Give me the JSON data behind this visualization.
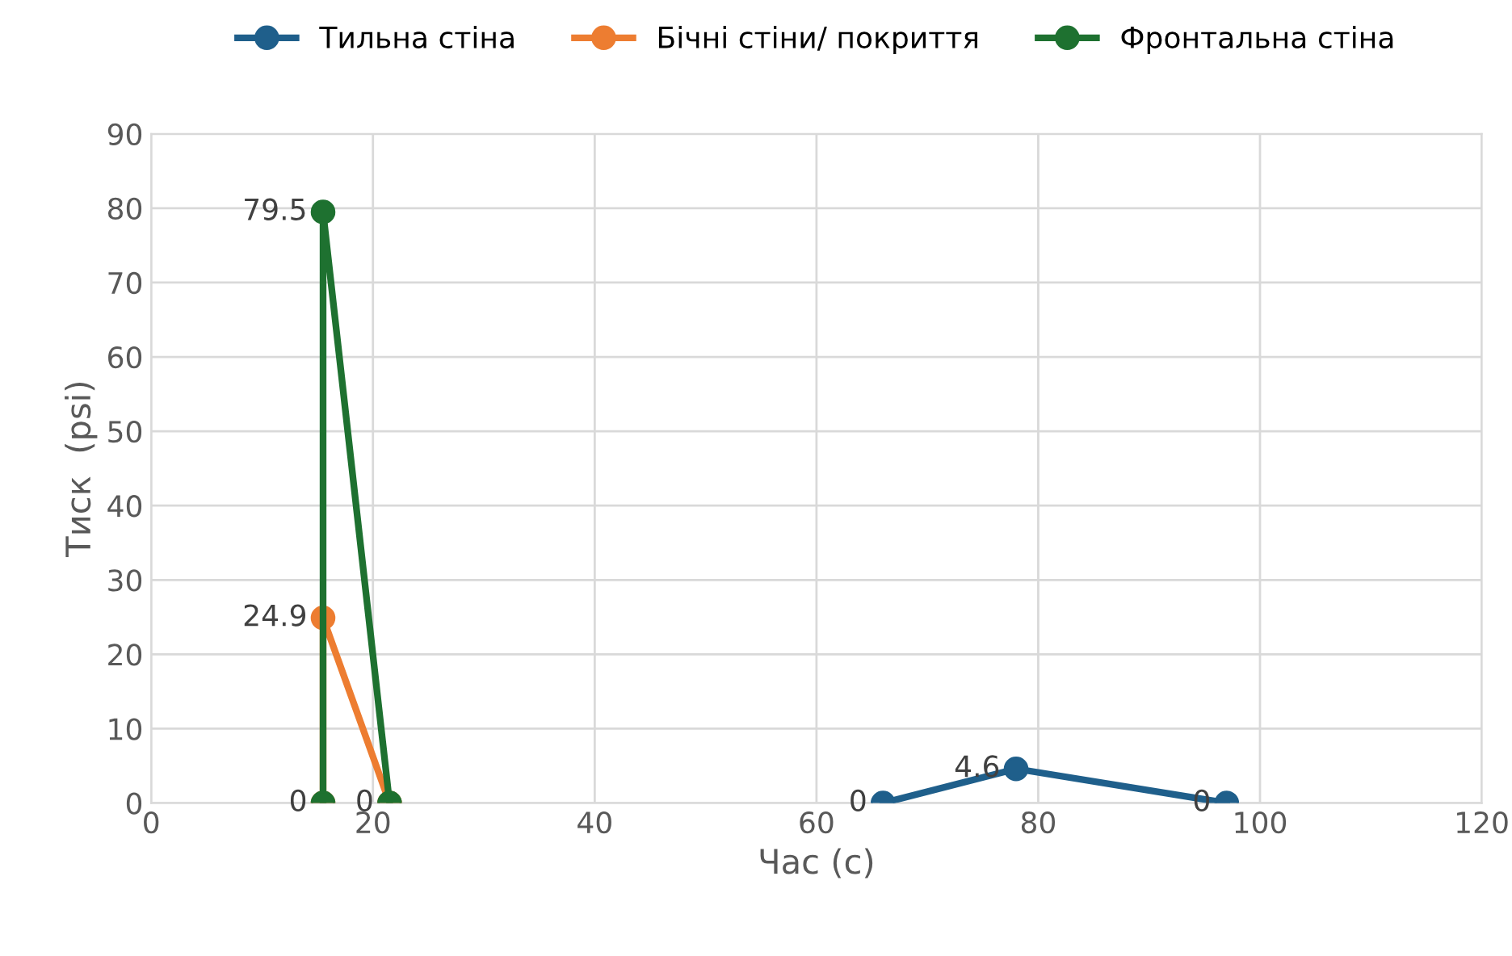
{
  "chart_data": {
    "type": "line",
    "xlabel": "Час (с)",
    "ylabel": "Тиск  (psi)",
    "series": [
      {
        "name": "Тильна стіна",
        "color": "#1f5f8b",
        "x": [
          66,
          78,
          97
        ],
        "values": [
          0,
          4.6,
          0
        ]
      },
      {
        "name": "Бічні стіни/ покриття",
        "color": "#ed7d31",
        "x": [
          15.5,
          15.5,
          21.5
        ],
        "values": [
          0,
          24.9,
          0
        ],
        "value_labels": [
          null,
          "24.9",
          null
        ]
      },
      {
        "name": "Фронтальна стіна",
        "color": "#1e7130",
        "x": [
          15.5,
          15.5,
          21.5
        ],
        "values": [
          0,
          79.5,
          0
        ]
      }
    ],
    "xlim": [
      0,
      120
    ],
    "xticks": [
      0,
      20,
      40,
      60,
      80,
      100,
      120
    ],
    "ylim": [
      0,
      90
    ],
    "yticks": [
      0,
      10,
      20,
      30,
      40,
      50,
      60,
      70,
      80,
      90
    ],
    "grid": true,
    "legend": "top",
    "marker": "circle",
    "line_style": "solid",
    "data_labels": true
  }
}
